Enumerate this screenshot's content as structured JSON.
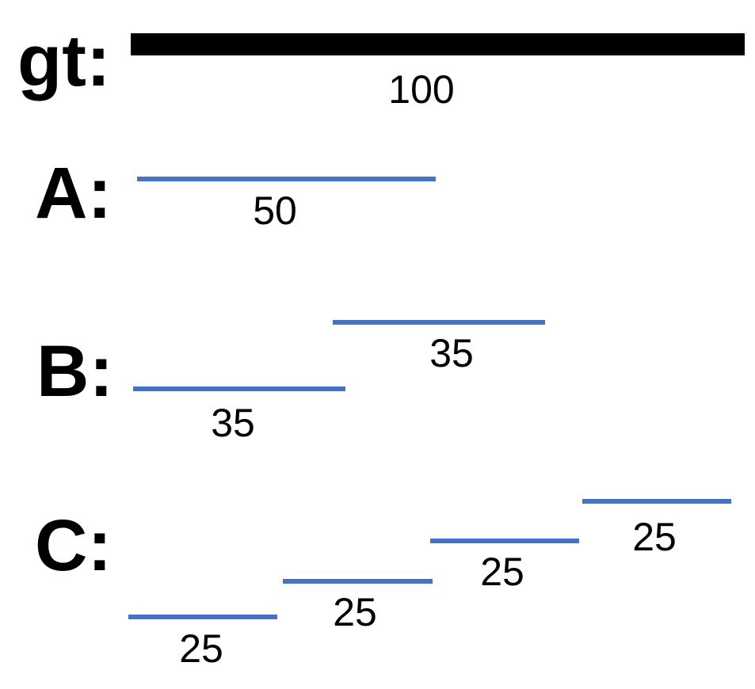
{
  "colors": {
    "ground_truth": "#000000",
    "prediction": "#4472c4"
  },
  "rows": {
    "gt": {
      "label": "gt:",
      "segments": [
        {
          "value": "100"
        }
      ]
    },
    "a": {
      "label": "A:",
      "segments": [
        {
          "value": "50"
        }
      ]
    },
    "b": {
      "label": "B:",
      "segments": [
        {
          "value": "35"
        },
        {
          "value": "35"
        }
      ]
    },
    "c": {
      "label": "C:",
      "segments": [
        {
          "value": "25"
        },
        {
          "value": "25"
        },
        {
          "value": "25"
        },
        {
          "value": "25"
        }
      ]
    }
  }
}
